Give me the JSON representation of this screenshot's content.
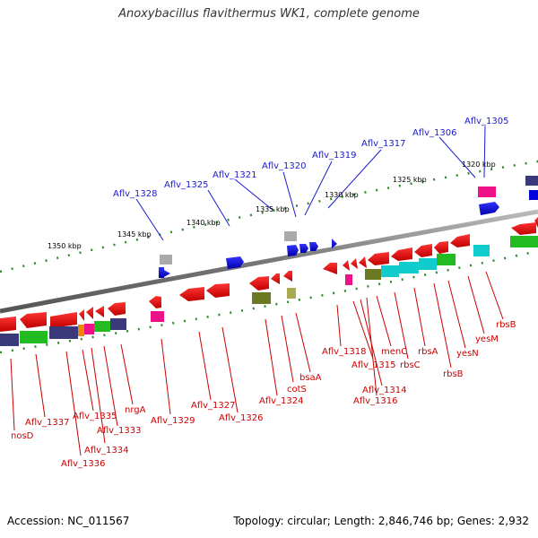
{
  "title": "Anoxybacillus flavithermus WK1, complete genome",
  "footer": {
    "accession": "Accession: NC_011567",
    "topology": "Topology: circular; Length: 2,846,746 bp; Genes: 2,932"
  },
  "kbp_labels": [
    "1350 kbp",
    "1345 kbp",
    "1340 kbp",
    "1335 kbp",
    "1330 kbp",
    "1325 kbp",
    "1320 kbp"
  ],
  "top_genes": [
    "Aflv_1328",
    "Aflv_1325",
    "Aflv_1321",
    "Aflv_1320",
    "Aflv_1319",
    "Aflv_1317",
    "Aflv_1306",
    "Aflv_1305"
  ],
  "bottom_genes": [
    "nosD",
    "Aflv_1337",
    "Aflv_1336",
    "Aflv_1335",
    "Aflv_1334",
    "Aflv_1333",
    "nrgA",
    "Aflv_1329",
    "Aflv_1327",
    "Aflv_1326",
    "Aflv_1324",
    "cotS",
    "bsaA",
    "Aflv_1318",
    "Aflv_1315",
    "Aflv_1314",
    "Aflv_1316",
    "menC",
    "rbsC",
    "rbsA",
    "rbsB",
    "yesN",
    "yesM",
    "rbsB"
  ],
  "colors": {
    "backbone": "#888888",
    "cds": "#ee0000",
    "forward_cds": "#0000ee",
    "label_top": "#1a1acd",
    "label_bottom": "#cc0000",
    "tick": "#2a8a2a"
  }
}
